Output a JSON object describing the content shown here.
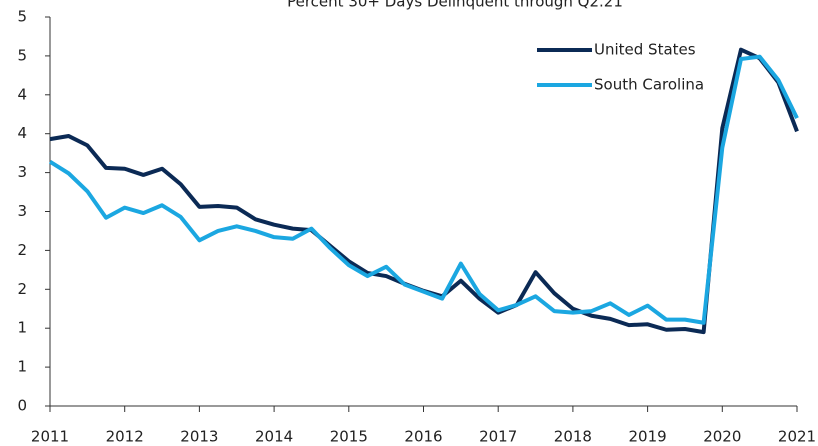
{
  "chart_data": {
    "type": "line",
    "title": "Percent 30+ Days Delinquent through Q2.21",
    "x": [
      2011,
      2011.25,
      2011.5,
      2011.75,
      2012,
      2012.25,
      2012.5,
      2012.75,
      2013,
      2013.25,
      2013.5,
      2013.75,
      2014,
      2014.25,
      2014.5,
      2014.75,
      2015,
      2015.25,
      2015.5,
      2015.75,
      2016,
      2016.25,
      2016.5,
      2016.75,
      2017,
      2017.25,
      2017.5,
      2017.75,
      2018,
      2018.25,
      2018.5,
      2018.75,
      2019,
      2019.25,
      2019.5,
      2019.75,
      2020,
      2020.25,
      2020.5,
      2020.75,
      2021
    ],
    "series": [
      {
        "name": "United States",
        "color": "#0b2a55",
        "values": [
          3.43,
          3.47,
          3.35,
          3.06,
          3.05,
          2.97,
          3.05,
          2.85,
          2.56,
          2.57,
          2.55,
          2.4,
          2.33,
          2.28,
          2.26,
          2.06,
          1.86,
          1.71,
          1.67,
          1.57,
          1.48,
          1.41,
          1.61,
          1.38,
          1.2,
          1.3,
          1.72,
          1.45,
          1.25,
          1.16,
          1.12,
          1.04,
          1.05,
          0.98,
          0.99,
          0.95,
          3.57,
          4.58,
          4.47,
          4.16,
          3.53
        ]
      },
      {
        "name": "South Carolina",
        "color": "#1ba7e1",
        "values": [
          3.14,
          2.99,
          2.76,
          2.42,
          2.55,
          2.48,
          2.58,
          2.43,
          2.13,
          2.25,
          2.31,
          2.25,
          2.17,
          2.15,
          2.28,
          2.03,
          1.81,
          1.67,
          1.79,
          1.56,
          1.47,
          1.38,
          1.83,
          1.44,
          1.23,
          1.3,
          1.41,
          1.22,
          1.2,
          1.22,
          1.32,
          1.17,
          1.29,
          1.11,
          1.11,
          1.07,
          3.32,
          4.46,
          4.49,
          4.19,
          3.7
        ]
      }
    ],
    "xlim": [
      2011,
      2021
    ],
    "xticks": [
      2011,
      2012,
      2013,
      2014,
      2015,
      2016,
      2017,
      2018,
      2019,
      2020,
      2021
    ],
    "ylim": [
      0,
      5
    ],
    "yticks": [
      0,
      {
        "value": 0.5,
        "label": "1"
      },
      {
        "value": 1.0,
        "label": "1"
      },
      {
        "value": 1.5,
        "label": "2"
      },
      {
        "value": 2.0,
        "label": "2"
      },
      {
        "value": 2.5,
        "label": "3"
      },
      {
        "value": 3.0,
        "label": "3"
      },
      {
        "value": 3.5,
        "label": "4"
      },
      {
        "value": 4.0,
        "label": "4"
      },
      {
        "value": 4.5,
        "label": "5"
      },
      5
    ],
    "grid": false,
    "legend": "upper right"
  }
}
